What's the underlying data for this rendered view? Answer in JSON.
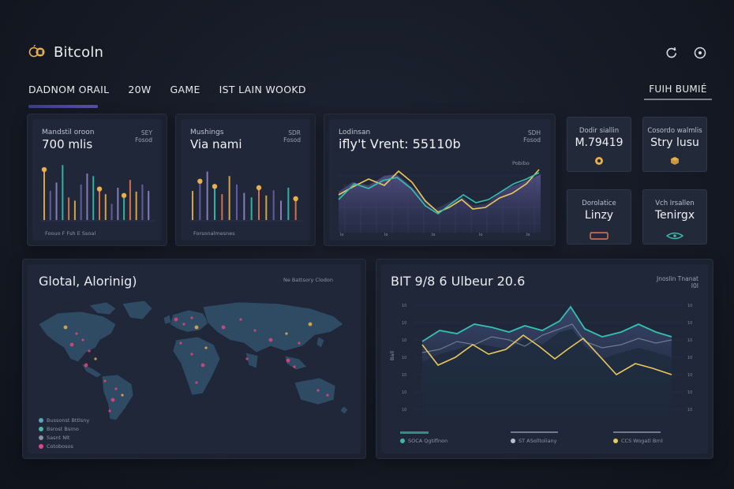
{
  "header": {
    "brand": "Bitcoln",
    "icons": [
      "refresh-icon",
      "settings-icon"
    ]
  },
  "tabs": [
    {
      "label": "DADNOM ORAIL",
      "active": true
    },
    {
      "label": "20W",
      "active": false
    },
    {
      "label": "GAME",
      "active": false
    },
    {
      "label": "IST LAIN WOOKD",
      "active": false
    }
  ],
  "cta_label": "FUIH BUMIÉ",
  "panels": {
    "bars_a": {
      "label": "Mandstil oroon",
      "value": "700 mlis",
      "tag_line1": "SEY",
      "tag_line2": "Fosod",
      "footer": "Foouo F Fsh E Ssoal",
      "values": [
        0.78,
        0.45,
        0.58,
        0.85,
        0.35,
        0.3,
        0.55,
        0.72,
        0.68,
        0.48,
        0.4,
        0.25,
        0.5,
        0.38,
        0.62,
        0.44,
        0.55,
        0.45
      ],
      "dots": [
        0,
        9,
        13
      ]
    },
    "bars_b": {
      "label": "Mushings",
      "value": "Via nami",
      "tag_line1": "SDR",
      "tag_line2": "Fosod",
      "footer": "Forsonalmesnes",
      "values": [
        0.45,
        0.6,
        0.75,
        0.52,
        0.4,
        0.68,
        0.55,
        0.42,
        0.35,
        0.5,
        0.38,
        0.46,
        0.3,
        0.5,
        0.33
      ],
      "dots": [
        1,
        3,
        9,
        14
      ]
    },
    "line_c": {
      "label": "Lodinsan",
      "value": "ifly't Vrent: 55110b",
      "tag_line1": "SDH",
      "tag_line2": "Fosod",
      "tag_line3": "Pobibo"
    },
    "stats": [
      {
        "label": "Dodir siallin",
        "value": "M.79419",
        "icon": "coin-icon",
        "color": "#e8b04b"
      },
      {
        "label": "Cosordo walmlis",
        "value": "Stry lusu",
        "icon": "cube-icon",
        "color": "#e8b04b"
      },
      {
        "label": "Dorolatice",
        "value": "Linzy",
        "icon": "card-icon",
        "color": "#e07b52"
      },
      {
        "label": "Vch Irsallen",
        "value": "Tenirgx",
        "icon": "eye-icon",
        "color": "#3fb6a6"
      }
    ],
    "map": {
      "title": "Glotal, Alorinig)",
      "tag": "Ne Battsory Clodon",
      "legend": [
        {
          "label": "Bussonst Bttlsny",
          "color": "#5aa6b6"
        },
        {
          "label": "Bsrost Bsrno",
          "color": "#4bb3a5"
        },
        {
          "label": "Sasnt Nlt",
          "color": "#8a92a0"
        },
        {
          "label": "Cotobosos",
          "color": "#e0467f"
        }
      ]
    },
    "area": {
      "title": "BIT 9/8 6 Ulbeur 20.6",
      "tag_line1": "Jnoslin Tnanat",
      "tag_line2": "I0I",
      "ylabel": "Ball",
      "legend": [
        {
          "label": "SOCA Qgtiflnon",
          "color": "#3fb6a6"
        },
        {
          "label": "ST ASolltoliany",
          "color": "#b9c0cc"
        },
        {
          "label": "CCS Wogatl Brnl",
          "color": "#e8c95b"
        }
      ]
    }
  },
  "colors": {
    "teal": "#34c0b0",
    "yellow": "#e8c95b",
    "orange": "#e8b04b",
    "purple": "#6a62a8",
    "pink": "#e0467f"
  }
}
